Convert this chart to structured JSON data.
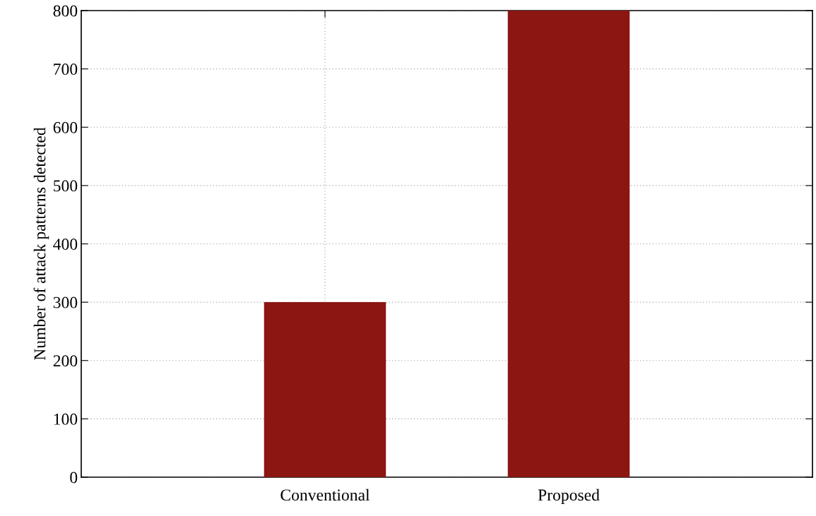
{
  "chart_data": {
    "type": "bar",
    "ylabel": "Number of attack patterns detected",
    "categories": [
      "Conventional",
      "Proposed"
    ],
    "values": [
      300,
      800
    ],
    "color": "#8b1612",
    "ylim": [
      0,
      800
    ],
    "yticks": [
      0,
      100,
      200,
      300,
      400,
      500,
      600,
      700,
      800
    ],
    "grid": true
  }
}
